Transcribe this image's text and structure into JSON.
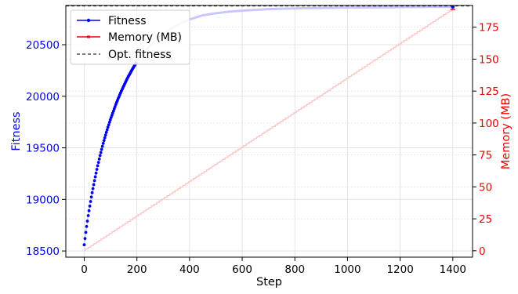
{
  "chart_data": {
    "type": "line",
    "title": "",
    "xlabel": "Step",
    "ylabel_left": "Fitness",
    "ylabel_right": "Memory (MB)",
    "xlim": [
      -70,
      1475
    ],
    "ylim_left": [
      18440,
      20880
    ],
    "ylim_right": [
      -5,
      192
    ],
    "x_ticks": [
      0,
      200,
      400,
      600,
      800,
      1000,
      1200,
      1400
    ],
    "y_left_ticks": [
      18500,
      19000,
      19500,
      20000,
      20500
    ],
    "y_right_ticks": [
      0,
      25,
      50,
      75,
      100,
      125,
      150,
      175
    ],
    "grid": true,
    "legend_position": "upper-left",
    "optimal_fitness": 20875,
    "series": [
      {
        "name": "Fitness",
        "axis": "left",
        "color": "#0000ee",
        "fade_color": "#c8c8ff",
        "marker": "dot",
        "x": [
          0,
          4,
          8,
          12,
          16,
          20,
          25,
          30,
          35,
          40,
          45,
          50,
          55,
          60,
          70,
          80,
          90,
          100,
          110,
          120,
          130,
          140,
          150,
          165,
          180,
          200,
          220,
          250,
          280,
          320,
          360,
          400,
          450,
          500,
          550,
          600,
          700,
          800,
          900,
          1000,
          1100,
          1200,
          1300,
          1400
        ],
        "values": [
          18560,
          18640,
          18720,
          18790,
          18860,
          18920,
          18995,
          19065,
          19130,
          19195,
          19255,
          19315,
          19370,
          19425,
          19525,
          19615,
          19700,
          19780,
          19850,
          19920,
          19985,
          20045,
          20100,
          20180,
          20250,
          20335,
          20405,
          20490,
          20560,
          20640,
          20700,
          20745,
          20785,
          20805,
          20820,
          20830,
          20845,
          20852,
          20856,
          20860,
          20862,
          20864,
          20866,
          20867
        ]
      },
      {
        "name": "Memory (MB)",
        "axis": "right",
        "color": "#ee0000",
        "fade_color": "#ffc8c8",
        "marker": "tick",
        "x": [
          0,
          1400
        ],
        "values": [
          0,
          189
        ]
      },
      {
        "name": "Opt. fitness",
        "axis": "left",
        "color": "#000000",
        "style": "dashed"
      }
    ],
    "colors": {
      "left_axis": "#0000ee",
      "right_axis": "#ee0000",
      "grid": "#dddddd"
    }
  }
}
